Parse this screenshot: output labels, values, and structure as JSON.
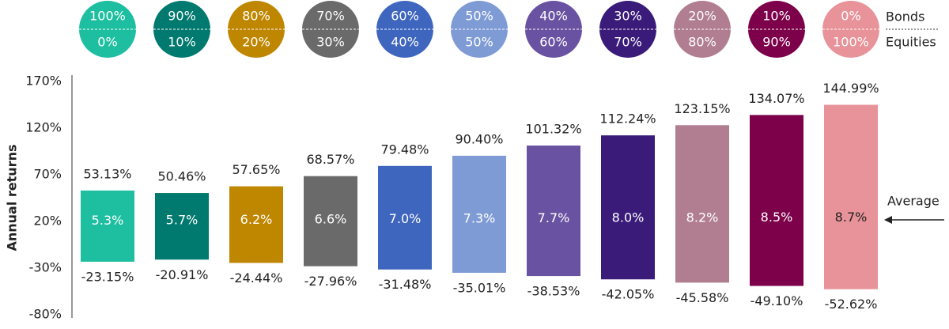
{
  "chart_data": {
    "type": "range_bar",
    "y_label": "Annual returns",
    "legend_top": "Bonds",
    "legend_bottom": "Equities",
    "average_note": "Average",
    "categories": [
      {
        "bonds": "100%",
        "equities": "0%"
      },
      {
        "bonds": "90%",
        "equities": "10%"
      },
      {
        "bonds": "80%",
        "equities": "20%"
      },
      {
        "bonds": "70%",
        "equities": "30%"
      },
      {
        "bonds": "60%",
        "equities": "40%"
      },
      {
        "bonds": "50%",
        "equities": "50%"
      },
      {
        "bonds": "40%",
        "equities": "60%"
      },
      {
        "bonds": "30%",
        "equities": "70%"
      },
      {
        "bonds": "20%",
        "equities": "80%"
      },
      {
        "bonds": "10%",
        "equities": "90%"
      },
      {
        "bonds": "0%",
        "equities": "100%"
      }
    ],
    "colors": [
      "#1dbfa0",
      "#00796e",
      "#bf8600",
      "#6a6a6a",
      "#3f66bf",
      "#7e9bd5",
      "#6a52a2",
      "#3a1b79",
      "#b07e90",
      "#7d004a",
      "#e8939a"
    ],
    "high": {
      "values": [
        53.13,
        50.46,
        57.65,
        68.57,
        79.48,
        90.4,
        101.32,
        112.24,
        123.15,
        134.07,
        144.99
      ],
      "value_labels": [
        "53.13%",
        "50.46%",
        "57.65%",
        "68.57%",
        "79.48%",
        "90.40%",
        "101.32%",
        "112.24%",
        "123.15%",
        "134.07%",
        "144.99%"
      ]
    },
    "low": {
      "values": [
        -23.15,
        -20.91,
        -24.44,
        -27.96,
        -31.48,
        -35.01,
        -38.53,
        -42.05,
        -45.58,
        -49.1,
        -52.62
      ],
      "value_labels": [
        "-23.15%",
        "-20.91%",
        "-24.44%",
        "-27.96%",
        "-31.48%",
        "-35.01%",
        "-38.53%",
        "-42.05%",
        "-45.58%",
        "-49.10%",
        "-52.62%"
      ]
    },
    "average": {
      "values": [
        5.3,
        5.7,
        6.2,
        6.6,
        7.0,
        7.3,
        7.7,
        8.0,
        8.2,
        8.5,
        8.7
      ],
      "value_labels": [
        "5.3%",
        "5.7%",
        "6.2%",
        "6.6%",
        "7.0%",
        "7.3%",
        "7.7%",
        "8.0%",
        "8.2%",
        "8.5%",
        "8.7%"
      ]
    },
    "ylim": [
      -80,
      170
    ],
    "yticks": [
      {
        "value": -80,
        "label": "-80%"
      },
      {
        "value": -30,
        "label": "-30%"
      },
      {
        "value": 20,
        "label": "20%"
      },
      {
        "value": 70,
        "label": "70%"
      },
      {
        "value": 120,
        "label": "120%"
      },
      {
        "value": 170,
        "label": "170%"
      }
    ]
  }
}
